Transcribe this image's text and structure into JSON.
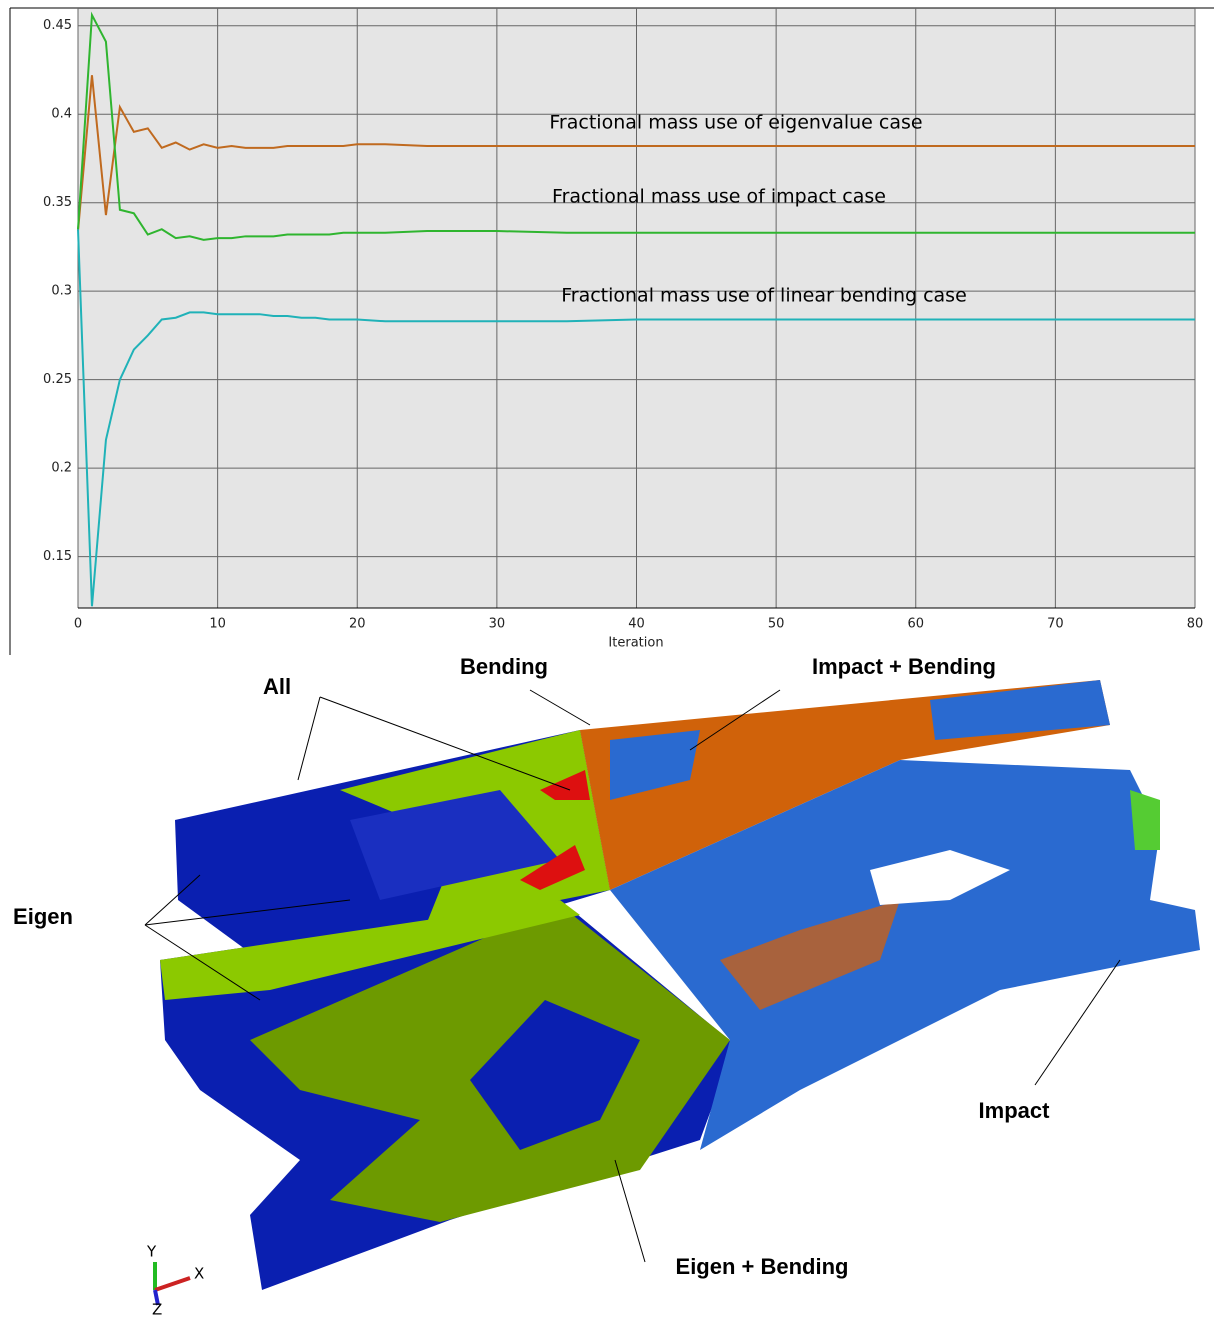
{
  "chart_data": {
    "type": "line",
    "x_label": "Iteration",
    "x": [
      0,
      1,
      2,
      3,
      4,
      5,
      6,
      7,
      8,
      9,
      10,
      11,
      12,
      13,
      14,
      15,
      16,
      17,
      18,
      19,
      20,
      22,
      25,
      30,
      35,
      40,
      45,
      50,
      55,
      60,
      65,
      70,
      75,
      80
    ],
    "series": [
      {
        "name": "Fractional mass use of eigenvalue case",
        "color": "#c06a1f",
        "values": [
          0.334,
          0.422,
          0.343,
          0.404,
          0.39,
          0.392,
          0.381,
          0.384,
          0.38,
          0.383,
          0.381,
          0.382,
          0.381,
          0.381,
          0.381,
          0.382,
          0.382,
          0.382,
          0.382,
          0.382,
          0.383,
          0.383,
          0.382,
          0.382,
          0.382,
          0.382,
          0.382,
          0.382,
          0.382,
          0.382,
          0.382,
          0.382,
          0.382,
          0.382
        ]
      },
      {
        "name": "Fractional mass use of impact case",
        "color": "#2fb52f",
        "values": [
          0.335,
          0.456,
          0.441,
          0.346,
          0.344,
          0.332,
          0.335,
          0.33,
          0.331,
          0.329,
          0.33,
          0.33,
          0.331,
          0.331,
          0.331,
          0.332,
          0.332,
          0.332,
          0.332,
          0.333,
          0.333,
          0.333,
          0.334,
          0.334,
          0.333,
          0.333,
          0.333,
          0.333,
          0.333,
          0.333,
          0.333,
          0.333,
          0.333,
          0.333
        ]
      },
      {
        "name": "Fractional mass use of linear bending case",
        "color": "#20b2b8",
        "values": [
          0.335,
          0.122,
          0.216,
          0.25,
          0.267,
          0.275,
          0.284,
          0.285,
          0.288,
          0.288,
          0.287,
          0.287,
          0.287,
          0.287,
          0.286,
          0.286,
          0.285,
          0.285,
          0.284,
          0.284,
          0.284,
          0.283,
          0.283,
          0.283,
          0.283,
          0.284,
          0.284,
          0.284,
          0.284,
          0.284,
          0.284,
          0.284,
          0.284,
          0.284
        ]
      }
    ],
    "xlim": [
      0,
      80
    ],
    "xticks": [
      0,
      10,
      20,
      30,
      40,
      50,
      60,
      70,
      80
    ],
    "ylim": [
      0.121,
      0.46
    ],
    "yticks": [
      0.15,
      0.2,
      0.25,
      0.3,
      0.35,
      0.4,
      0.45
    ],
    "grid": true
  },
  "figure": {
    "labels": [
      "All",
      "Bending",
      "Impact + Bending",
      "Eigen",
      "Impact",
      "Eigen + Bending"
    ],
    "triad": [
      "Y",
      "X",
      "Z"
    ]
  }
}
